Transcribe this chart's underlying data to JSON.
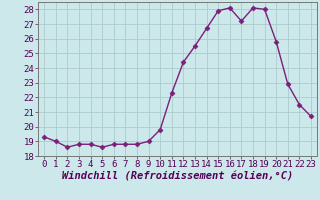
{
  "x": [
    0,
    1,
    2,
    3,
    4,
    5,
    6,
    7,
    8,
    9,
    10,
    11,
    12,
    13,
    14,
    15,
    16,
    17,
    18,
    19,
    20,
    21,
    22,
    23
  ],
  "y": [
    19.3,
    19.0,
    18.6,
    18.8,
    18.8,
    18.6,
    18.8,
    18.8,
    18.8,
    19.0,
    19.8,
    22.3,
    24.4,
    25.5,
    26.7,
    27.9,
    28.1,
    27.2,
    28.1,
    28.0,
    25.8,
    22.9,
    21.5,
    20.7
  ],
  "line_color": "#7b1f7b",
  "marker": "D",
  "bg_color": "#cce8ea",
  "grid_color": "#aacccc",
  "xlabel": "Windchill (Refroidissement éolien,°C)",
  "ylim": [
    18,
    28.5
  ],
  "xlim": [
    -0.5,
    23.5
  ],
  "yticks": [
    18,
    19,
    20,
    21,
    22,
    23,
    24,
    25,
    26,
    27,
    28
  ],
  "xticks": [
    0,
    1,
    2,
    3,
    4,
    5,
    6,
    7,
    8,
    9,
    10,
    11,
    12,
    13,
    14,
    15,
    16,
    17,
    18,
    19,
    20,
    21,
    22,
    23
  ],
  "tick_fontsize": 6.5,
  "xlabel_fontsize": 7.5,
  "marker_size": 2.5,
  "line_width": 1.0
}
